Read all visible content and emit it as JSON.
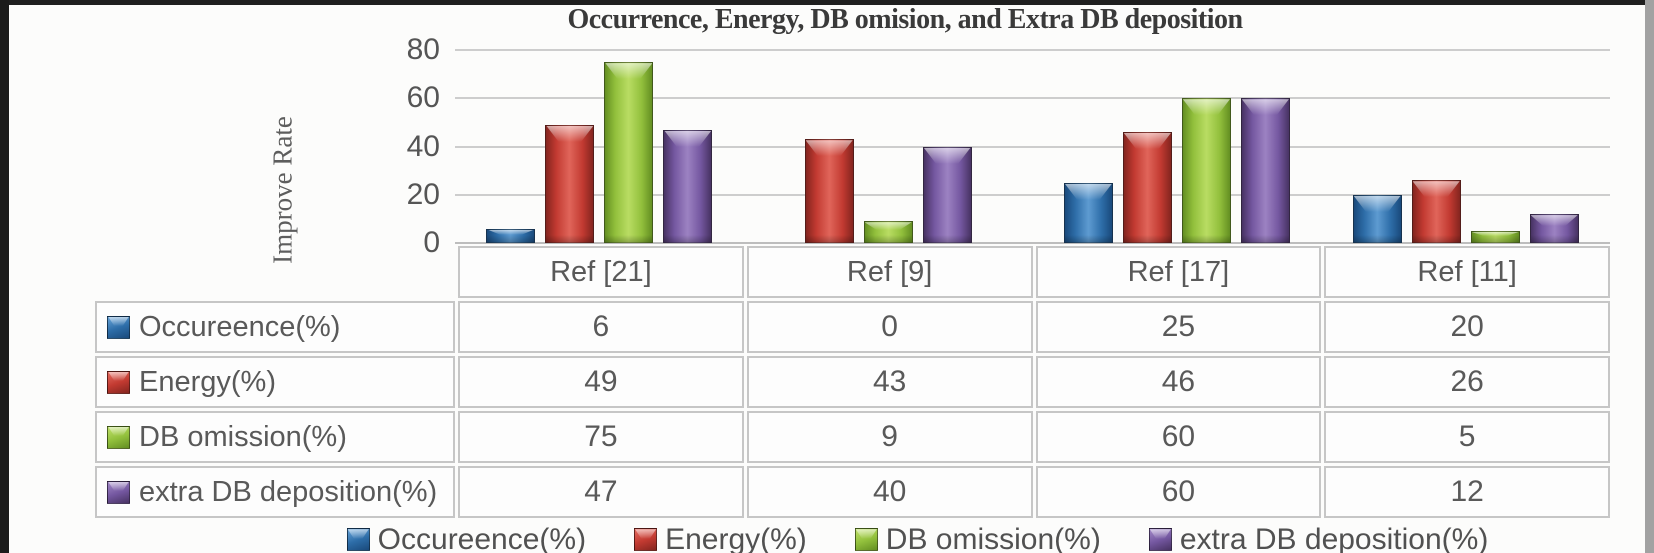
{
  "figure": {
    "title": "Occurrence, Energy, DB omision, and Extra DB deposition",
    "y_axis_label": "Improve Rate"
  },
  "chart_data": {
    "type": "bar",
    "title": "Occurrence, Energy, DB omision, and Extra DB deposition",
    "ylabel": "Improve Rate",
    "xlabel": "",
    "categories": [
      "Ref [21]",
      "Ref [9]",
      "Ref [17]",
      "Ref [11]"
    ],
    "series": [
      {
        "name": "Occureence(%)",
        "values": [
          6,
          0,
          25,
          20
        ],
        "color": "#2d6da8",
        "color_light": "#5e9bd1",
        "color_dark": "#1a4a7c"
      },
      {
        "name": "Energy(%)",
        "values": [
          49,
          43,
          46,
          26
        ],
        "color": "#c23a31",
        "color_light": "#e0655a",
        "color_dark": "#84251f"
      },
      {
        "name": "DB omission(%)",
        "values": [
          75,
          9,
          60,
          5
        ],
        "color": "#92c03c",
        "color_light": "#b9dc63",
        "color_dark": "#648f22"
      },
      {
        "name": "extra DB deposition(%)",
        "values": [
          47,
          40,
          60,
          12
        ],
        "color": "#7457a0",
        "color_light": "#9c82c2",
        "color_dark": "#483363"
      }
    ],
    "ylim": [
      0,
      80
    ],
    "yticks": [
      "0",
      "20",
      "40",
      "60",
      "80"
    ],
    "grid": true,
    "legend_position": "bottom",
    "data_table_shown": true
  }
}
